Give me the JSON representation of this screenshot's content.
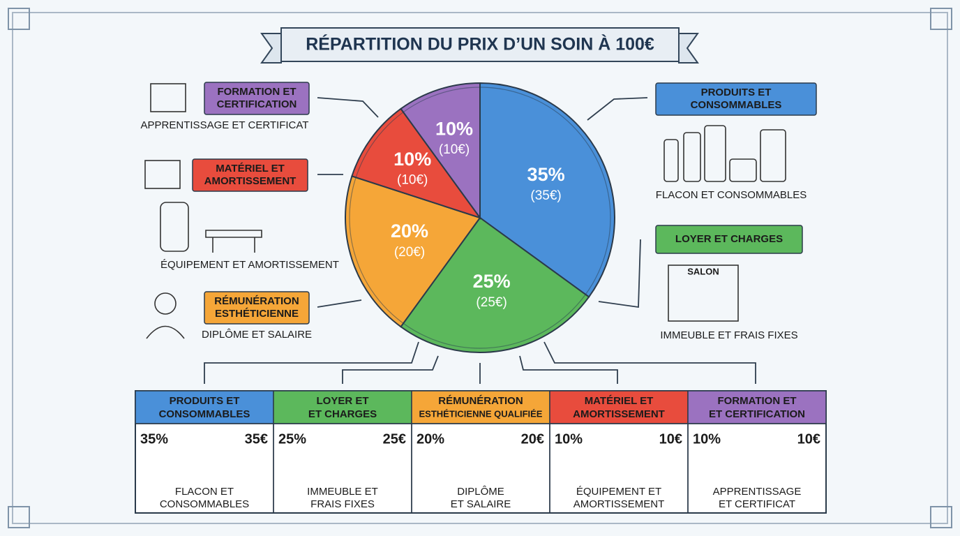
{
  "chart_data": {
    "type": "pie",
    "title": "RÉPARTITION DU PRIX D’UN SOIN À 100€",
    "categories": [
      [
        "PRODUITS ET",
        "CONSOMMABLES"
      ],
      [
        "LOYER ET CHARGES"
      ],
      [
        "RÉMUNÉRATION",
        "ESTHÉTICIENNE"
      ],
      [
        "MATÉRIEL ET",
        "AMORTISSEMENT"
      ],
      [
        "FORMATION ET",
        "CERTIFICATION"
      ]
    ],
    "captions": [
      "FLACON ET CONSOMMABLES",
      "IMMEUBLE ET FRAIS FIXES",
      "DIPLÔME ET SALAIRE",
      "ÉQUIPEMENT ET AMORTISSEMENT",
      "APPRENTISSAGE ET CERTIFICAT"
    ],
    "values": [
      35,
      25,
      20,
      10,
      10
    ],
    "value_labels": [
      "35%",
      "25%",
      "20%",
      "10%",
      "10%"
    ],
    "amount_labels": [
      "(35€)",
      "(25€)",
      "(20€)",
      "(10€)",
      "(10€)"
    ],
    "colors": [
      "#4a90d9",
      "#5cb85c",
      "#f5a638",
      "#e84c3d",
      "#9b72c0"
    ]
  },
  "table": {
    "columns": [
      {
        "lines": [
          "PRODUITS ET",
          "CONSOMMABLES"
        ],
        "pct": "35%",
        "amount": "35€",
        "caption": [
          "FLACON ET",
          "CONSOMMABLES"
        ]
      },
      {
        "lines": [
          "LOYER ET",
          "ET CHARGES"
        ],
        "pct": "25%",
        "amount": "25€",
        "caption": [
          "IMMEUBLE ET",
          "FRAIS FIXES"
        ]
      },
      {
        "lines": [
          "RÉMUNÉRATION",
          "ESTHÉTICIENNE QUALIFIÉE"
        ],
        "pct": "20%",
        "amount": "20€",
        "caption": [
          "DIPLÔME",
          "ET SALAIRE"
        ]
      },
      {
        "lines": [
          "MATÉRIEL ET",
          "AMORTISSEMENT"
        ],
        "pct": "10%",
        "amount": "10€",
        "caption": [
          "ÉQUIPEMENT ET",
          "AMORTISSEMENT"
        ]
      },
      {
        "lines": [
          "FORMATION ET",
          "ET CERTIFICATION"
        ],
        "pct": "10%",
        "amount": "10€",
        "caption": [
          "APPRENTISSAGE",
          "ET CERTIFICAT"
        ]
      }
    ]
  },
  "icons": {
    "salon": "SALON"
  }
}
